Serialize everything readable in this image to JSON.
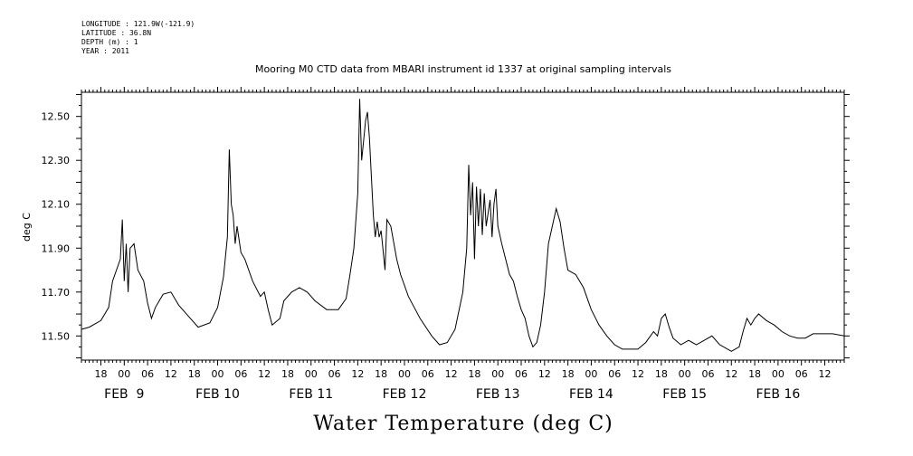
{
  "meta": {
    "longitude": "LONGITUDE : 121.9W(-121.9)",
    "latitude": "LATITUDE : 36.8N",
    "depth": "DEPTH (m) : 1",
    "year": "YEAR : 2011"
  },
  "chart_data": {
    "type": "line",
    "title": "Mooring M0 CTD data from MBARI instrument id 1337 at original sampling intervals",
    "xlabel": "Water Temperature (deg C)",
    "ylabel": "deg C",
    "ylim": [
      11.39,
      12.61
    ],
    "yticks": [
      11.5,
      11.7,
      11.9,
      12.1,
      12.3,
      12.5
    ],
    "ytick_labels": [
      "11.50",
      "11.70",
      "11.90",
      "12.10",
      "12.30",
      "12.50"
    ],
    "xlim": [
      "2011-02-08T13:00",
      "2011-02-16T17:00"
    ],
    "xtick_hour_labels": [
      "18",
      "00",
      "06",
      "12",
      "18",
      "00",
      "06",
      "12",
      "18",
      "00",
      "06",
      "12",
      "18",
      "00",
      "06",
      "12",
      "18",
      "00",
      "06",
      "12",
      "18",
      "00",
      "06",
      "12",
      "18",
      "00",
      "06",
      "12",
      "18",
      "00",
      "06",
      "12"
    ],
    "date_labels": [
      {
        "text": "FEB  9",
        "date": "2011-02-09"
      },
      {
        "text": "FEB 10",
        "date": "2011-02-10"
      },
      {
        "text": "FEB 11",
        "date": "2011-02-11"
      },
      {
        "text": "FEB 12",
        "date": "2011-02-12"
      },
      {
        "text": "FEB 13",
        "date": "2011-02-13"
      },
      {
        "text": "FEB 14",
        "date": "2011-02-14"
      },
      {
        "text": "FEB 15",
        "date": "2011-02-15"
      },
      {
        "text": "FEB 16",
        "date": "2011-02-16"
      }
    ],
    "grid": false,
    "series": [
      {
        "values": [
          [
            "2011-02-08T13:00",
            11.53
          ],
          [
            "2011-02-08T15:00",
            11.54
          ],
          [
            "2011-02-08T18:00",
            11.57
          ],
          [
            "2011-02-08T20:00",
            11.63
          ],
          [
            "2011-02-08T21:00",
            11.75
          ],
          [
            "2011-02-08T22:00",
            11.8
          ],
          [
            "2011-02-08T23:00",
            11.85
          ],
          [
            "2011-02-08T23:30",
            12.03
          ],
          [
            "2011-02-09T00:00",
            11.75
          ],
          [
            "2011-02-09T00:30",
            11.92
          ],
          [
            "2011-02-09T01:00",
            11.7
          ],
          [
            "2011-02-09T01:30",
            11.9
          ],
          [
            "2011-02-09T02:30",
            11.92
          ],
          [
            "2011-02-09T03:30",
            11.8
          ],
          [
            "2011-02-09T05:00",
            11.75
          ],
          [
            "2011-02-09T06:00",
            11.65
          ],
          [
            "2011-02-09T07:00",
            11.58
          ],
          [
            "2011-02-09T08:00",
            11.63
          ],
          [
            "2011-02-09T10:00",
            11.69
          ],
          [
            "2011-02-09T12:00",
            11.7
          ],
          [
            "2011-02-09T14:00",
            11.64
          ],
          [
            "2011-02-09T17:00",
            11.58
          ],
          [
            "2011-02-09T19:00",
            11.54
          ],
          [
            "2011-02-09T22:00",
            11.56
          ],
          [
            "2011-02-10T00:00",
            11.63
          ],
          [
            "2011-02-10T01:30",
            11.77
          ],
          [
            "2011-02-10T02:30",
            11.95
          ],
          [
            "2011-02-10T03:00",
            12.35
          ],
          [
            "2011-02-10T03:30",
            12.1
          ],
          [
            "2011-02-10T04:00",
            12.05
          ],
          [
            "2011-02-10T04:30",
            11.92
          ],
          [
            "2011-02-10T05:00",
            12.0
          ],
          [
            "2011-02-10T06:00",
            11.88
          ],
          [
            "2011-02-10T07:00",
            11.85
          ],
          [
            "2011-02-10T09:00",
            11.75
          ],
          [
            "2011-02-10T11:00",
            11.68
          ],
          [
            "2011-02-10T12:00",
            11.7
          ],
          [
            "2011-02-10T13:00",
            11.62
          ],
          [
            "2011-02-10T14:00",
            11.55
          ],
          [
            "2011-02-10T16:00",
            11.58
          ],
          [
            "2011-02-10T17:00",
            11.66
          ],
          [
            "2011-02-10T19:00",
            11.7
          ],
          [
            "2011-02-10T21:00",
            11.72
          ],
          [
            "2011-02-10T23:00",
            11.7
          ],
          [
            "2011-02-11T01:00",
            11.66
          ],
          [
            "2011-02-11T04:00",
            11.62
          ],
          [
            "2011-02-11T07:00",
            11.62
          ],
          [
            "2011-02-11T09:00",
            11.67
          ],
          [
            "2011-02-11T10:00",
            11.78
          ],
          [
            "2011-02-11T11:00",
            11.9
          ],
          [
            "2011-02-11T12:00",
            12.15
          ],
          [
            "2011-02-11T12:30",
            12.58
          ],
          [
            "2011-02-11T13:00",
            12.3
          ],
          [
            "2011-02-11T14:00",
            12.48
          ],
          [
            "2011-02-11T14:30",
            12.52
          ],
          [
            "2011-02-11T15:00",
            12.4
          ],
          [
            "2011-02-11T16:00",
            12.05
          ],
          [
            "2011-02-11T16:30",
            11.95
          ],
          [
            "2011-02-11T17:00",
            12.02
          ],
          [
            "2011-02-11T17:30",
            11.95
          ],
          [
            "2011-02-11T18:00",
            11.98
          ],
          [
            "2011-02-11T19:00",
            11.8
          ],
          [
            "2011-02-11T19:30",
            12.03
          ],
          [
            "2011-02-11T20:30",
            12.0
          ],
          [
            "2011-02-11T22:00",
            11.85
          ],
          [
            "2011-02-11T23:00",
            11.78
          ],
          [
            "2011-02-12T01:00",
            11.68
          ],
          [
            "2011-02-12T04:00",
            11.58
          ],
          [
            "2011-02-12T07:00",
            11.5
          ],
          [
            "2011-02-12T09:00",
            11.46
          ],
          [
            "2011-02-12T11:00",
            11.47
          ],
          [
            "2011-02-12T13:00",
            11.53
          ],
          [
            "2011-02-12T15:00",
            11.7
          ],
          [
            "2011-02-12T16:00",
            11.9
          ],
          [
            "2011-02-12T16:30",
            12.28
          ],
          [
            "2011-02-12T17:00",
            12.05
          ],
          [
            "2011-02-12T17:30",
            12.2
          ],
          [
            "2011-02-12T18:00",
            11.85
          ],
          [
            "2011-02-12T18:30",
            12.18
          ],
          [
            "2011-02-12T19:00",
            12.0
          ],
          [
            "2011-02-12T19:30",
            12.17
          ],
          [
            "2011-02-12T20:00",
            11.96
          ],
          [
            "2011-02-12T20:30",
            12.15
          ],
          [
            "2011-02-12T21:00",
            12.0
          ],
          [
            "2011-02-12T22:00",
            12.12
          ],
          [
            "2011-02-12T22:30",
            11.95
          ],
          [
            "2011-02-12T23:00",
            12.1
          ],
          [
            "2011-02-12T23:30",
            12.17
          ],
          [
            "2011-02-13T00:00",
            12.0
          ],
          [
            "2011-02-13T01:00",
            11.92
          ],
          [
            "2011-02-13T02:00",
            11.85
          ],
          [
            "2011-02-13T03:00",
            11.78
          ],
          [
            "2011-02-13T04:00",
            11.75
          ],
          [
            "2011-02-13T05:00",
            11.68
          ],
          [
            "2011-02-13T06:00",
            11.62
          ],
          [
            "2011-02-13T07:00",
            11.58
          ],
          [
            "2011-02-13T08:00",
            11.5
          ],
          [
            "2011-02-13T09:00",
            11.45
          ],
          [
            "2011-02-13T10:00",
            11.47
          ],
          [
            "2011-02-13T11:00",
            11.55
          ],
          [
            "2011-02-13T12:00",
            11.7
          ],
          [
            "2011-02-13T13:00",
            11.92
          ],
          [
            "2011-02-13T14:00",
            12.0
          ],
          [
            "2011-02-13T15:00",
            12.08
          ],
          [
            "2011-02-13T16:00",
            12.02
          ],
          [
            "2011-02-13T17:00",
            11.9
          ],
          [
            "2011-02-13T18:00",
            11.8
          ],
          [
            "2011-02-13T20:00",
            11.78
          ],
          [
            "2011-02-13T22:00",
            11.72
          ],
          [
            "2011-02-14T00:00",
            11.62
          ],
          [
            "2011-02-14T02:00",
            11.55
          ],
          [
            "2011-02-14T04:00",
            11.5
          ],
          [
            "2011-02-14T06:00",
            11.46
          ],
          [
            "2011-02-14T08:00",
            11.44
          ],
          [
            "2011-02-14T12:00",
            11.44
          ],
          [
            "2011-02-14T14:00",
            11.47
          ],
          [
            "2011-02-14T16:00",
            11.52
          ],
          [
            "2011-02-14T17:00",
            11.5
          ],
          [
            "2011-02-14T18:00",
            11.58
          ],
          [
            "2011-02-14T19:00",
            11.6
          ],
          [
            "2011-02-14T20:00",
            11.54
          ],
          [
            "2011-02-14T21:00",
            11.49
          ],
          [
            "2011-02-14T23:00",
            11.46
          ],
          [
            "2011-02-15T01:00",
            11.48
          ],
          [
            "2011-02-15T03:00",
            11.46
          ],
          [
            "2011-02-15T05:00",
            11.48
          ],
          [
            "2011-02-15T07:00",
            11.5
          ],
          [
            "2011-02-15T09:00",
            11.46
          ],
          [
            "2011-02-15T12:00",
            11.43
          ],
          [
            "2011-02-15T14:00",
            11.45
          ],
          [
            "2011-02-15T15:00",
            11.52
          ],
          [
            "2011-02-15T16:00",
            11.58
          ],
          [
            "2011-02-15T17:00",
            11.55
          ],
          [
            "2011-02-15T18:00",
            11.58
          ],
          [
            "2011-02-15T19:00",
            11.6
          ],
          [
            "2011-02-15T21:00",
            11.57
          ],
          [
            "2011-02-15T23:00",
            11.55
          ],
          [
            "2011-02-16T01:00",
            11.52
          ],
          [
            "2011-02-16T03:00",
            11.5
          ],
          [
            "2011-02-16T05:00",
            11.49
          ],
          [
            "2011-02-16T07:00",
            11.49
          ],
          [
            "2011-02-16T09:00",
            11.51
          ],
          [
            "2011-02-16T12:00",
            11.51
          ],
          [
            "2011-02-16T14:00",
            11.51
          ],
          [
            "2011-02-16T17:00",
            11.5
          ]
        ]
      }
    ]
  }
}
